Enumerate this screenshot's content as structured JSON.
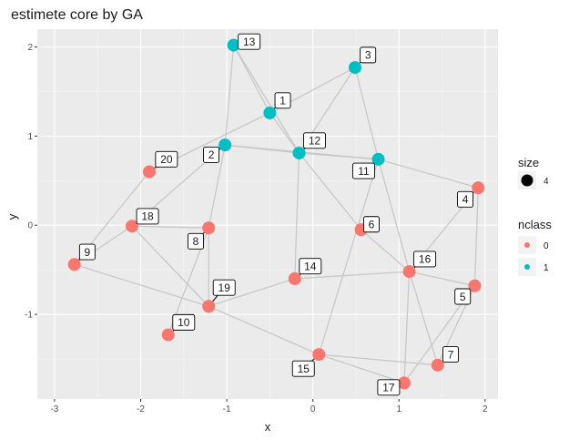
{
  "chart_data": {
    "type": "scatter",
    "title": "estimete core by GA",
    "xlabel": "x",
    "ylabel": "y",
    "xlim": [
      -3.2,
      2.15
    ],
    "ylim": [
      -1.95,
      2.2
    ],
    "x_ticks": [
      -3,
      -2,
      -1,
      0,
      1,
      2
    ],
    "y_ticks": [
      -1,
      0,
      1,
      2
    ],
    "grid": true,
    "legend_position": "right",
    "legend": {
      "size": {
        "title": "size",
        "entries": [
          {
            "label": "4"
          }
        ]
      },
      "nclass": {
        "title": "nclass",
        "entries": [
          {
            "label": "0",
            "color": "#F8766D"
          },
          {
            "label": "1",
            "color": "#00BFC4"
          }
        ]
      }
    },
    "colors": {
      "0": "#F8766D",
      "1": "#00BFC4",
      "edge": "#c8c8c8"
    },
    "nodes": [
      {
        "id": "1",
        "x": -0.5,
        "y": 1.26,
        "nclass": 1,
        "label_dx": 0.15,
        "label_dy": 0.14
      },
      {
        "id": "2",
        "x": -1.02,
        "y": 0.9,
        "nclass": 1,
        "label_dx": -0.16,
        "label_dy": -0.11
      },
      {
        "id": "3",
        "x": 0.49,
        "y": 1.77,
        "nclass": 1,
        "label_dx": 0.15,
        "label_dy": 0.14
      },
      {
        "id": "4",
        "x": 1.92,
        "y": 0.42,
        "nclass": 0,
        "label_dx": -0.15,
        "label_dy": -0.13
      },
      {
        "id": "5",
        "x": 1.88,
        "y": -0.68,
        "nclass": 0,
        "label_dx": -0.14,
        "label_dy": -0.12
      },
      {
        "id": "6",
        "x": 0.56,
        "y": -0.05,
        "nclass": 0,
        "label_dx": 0.12,
        "label_dy": 0.06
      },
      {
        "id": "7",
        "x": 1.45,
        "y": -1.57,
        "nclass": 0,
        "label_dx": 0.15,
        "label_dy": 0.12
      },
      {
        "id": "8",
        "x": -1.21,
        "y": -0.03,
        "nclass": 0,
        "label_dx": -0.15,
        "label_dy": -0.15
      },
      {
        "id": "9",
        "x": -2.77,
        "y": -0.44,
        "nclass": 0,
        "label_dx": 0.15,
        "label_dy": 0.14
      },
      {
        "id": "10",
        "x": -1.68,
        "y": -1.23,
        "nclass": 0,
        "label_dx": 0.18,
        "label_dy": 0.14
      },
      {
        "id": "11",
        "x": 0.76,
        "y": 0.74,
        "nclass": 1,
        "label_dx": -0.17,
        "label_dy": -0.13
      },
      {
        "id": "12",
        "x": -0.16,
        "y": 0.81,
        "nclass": 1,
        "label_dx": 0.18,
        "label_dy": 0.14
      },
      {
        "id": "13",
        "x": -0.92,
        "y": 2.02,
        "nclass": 1,
        "label_dx": 0.18,
        "label_dy": 0.04
      },
      {
        "id": "14",
        "x": -0.21,
        "y": -0.6,
        "nclass": 0,
        "label_dx": 0.18,
        "label_dy": 0.14
      },
      {
        "id": "15",
        "x": 0.07,
        "y": -1.45,
        "nclass": 0,
        "label_dx": -0.18,
        "label_dy": -0.16
      },
      {
        "id": "16",
        "x": 1.12,
        "y": -0.52,
        "nclass": 0,
        "label_dx": 0.18,
        "label_dy": 0.14
      },
      {
        "id": "17",
        "x": 1.06,
        "y": -1.77,
        "nclass": 0,
        "label_dx": -0.18,
        "label_dy": -0.05
      },
      {
        "id": "18",
        "x": -2.1,
        "y": -0.01,
        "nclass": 0,
        "label_dx": 0.18,
        "label_dy": 0.11
      },
      {
        "id": "19",
        "x": -1.21,
        "y": -0.91,
        "nclass": 0,
        "label_dx": 0.18,
        "label_dy": 0.21
      },
      {
        "id": "20",
        "x": -1.9,
        "y": 0.6,
        "nclass": 0,
        "label_dx": 0.2,
        "label_dy": 0.14
      }
    ],
    "edges": [
      [
        "13",
        "1"
      ],
      [
        "13",
        "12"
      ],
      [
        "13",
        "2"
      ],
      [
        "1",
        "3"
      ],
      [
        "1",
        "12"
      ],
      [
        "1",
        "20"
      ],
      [
        "3",
        "12"
      ],
      [
        "3",
        "11"
      ],
      [
        "2",
        "12"
      ],
      [
        "2",
        "11"
      ],
      [
        "2",
        "8"
      ],
      [
        "12",
        "11"
      ],
      [
        "12",
        "6"
      ],
      [
        "12",
        "14"
      ],
      [
        "11",
        "4"
      ],
      [
        "11",
        "15"
      ],
      [
        "11",
        "16"
      ],
      [
        "4",
        "16"
      ],
      [
        "4",
        "5"
      ],
      [
        "6",
        "16"
      ],
      [
        "16",
        "7"
      ],
      [
        "16",
        "17"
      ],
      [
        "5",
        "17"
      ],
      [
        "5",
        "7"
      ],
      [
        "15",
        "17"
      ],
      [
        "15",
        "7"
      ],
      [
        "14",
        "19"
      ],
      [
        "14",
        "16"
      ],
      [
        "8",
        "19"
      ],
      [
        "8",
        "10"
      ],
      [
        "8",
        "18"
      ],
      [
        "18",
        "9"
      ],
      [
        "20",
        "9"
      ],
      [
        "9",
        "19"
      ],
      [
        "19",
        "18"
      ],
      [
        "19",
        "15"
      ],
      [
        "16",
        "5"
      ],
      [
        "2",
        "18"
      ]
    ]
  }
}
